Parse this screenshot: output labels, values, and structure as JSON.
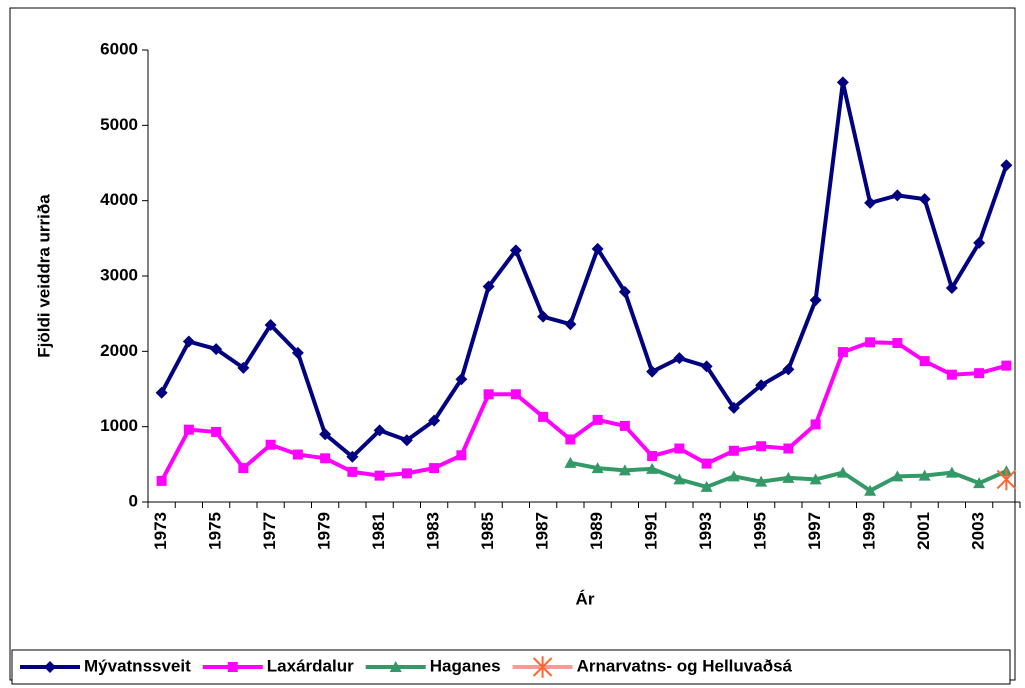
{
  "chart_data": {
    "type": "line",
    "x_label": "Ár",
    "y_label": "Fjöldi veiddra urriða",
    "categories": [
      "1973",
      null,
      "1975",
      null,
      "1977",
      null,
      "1979",
      null,
      "1981",
      null,
      "1983",
      null,
      "1985",
      null,
      "1987",
      null,
      "1989",
      null,
      "1991",
      null,
      "1993",
      null,
      "1995",
      null,
      "1997",
      null,
      "1999",
      null,
      "2001",
      null,
      "2003",
      null
    ],
    "series": [
      {
        "name": "Mývatnssveit",
        "color": "#000080",
        "marker": "diamond",
        "values": [
          1450,
          2130,
          2030,
          1780,
          2350,
          1980,
          900,
          600,
          950,
          820,
          1080,
          1630,
          2860,
          3340,
          2460,
          2360,
          3360,
          2790,
          1730,
          1910,
          1800,
          1250,
          1550,
          1760,
          2680,
          5570,
          3970,
          4070,
          4020,
          2840,
          3440,
          4470
        ]
      },
      {
        "name": "Laxárdalur",
        "color": "#ff00ff",
        "marker": "square",
        "values": [
          280,
          960,
          930,
          450,
          760,
          630,
          580,
          400,
          350,
          380,
          450,
          620,
          1430,
          1430,
          1130,
          830,
          1090,
          1010,
          610,
          710,
          510,
          680,
          740,
          710,
          1030,
          1990,
          2120,
          2110,
          1870,
          1690,
          1710,
          1810
        ]
      },
      {
        "name": "Haganes",
        "color": "#339966",
        "marker": "triangle",
        "values": [
          null,
          null,
          null,
          null,
          null,
          null,
          null,
          null,
          null,
          null,
          null,
          null,
          null,
          null,
          null,
          520,
          450,
          420,
          440,
          300,
          200,
          340,
          270,
          320,
          300,
          390,
          150,
          340,
          350,
          390,
          250,
          410
        ]
      },
      {
        "name": "Arnarvatns- og Helluvaðsá",
        "color": "#ff6633",
        "legend_line_color": "#ff9999",
        "marker": "asterisk",
        "values": [
          null,
          null,
          null,
          null,
          null,
          null,
          null,
          null,
          null,
          null,
          null,
          null,
          null,
          null,
          null,
          null,
          null,
          null,
          null,
          null,
          null,
          null,
          null,
          null,
          null,
          null,
          null,
          null,
          null,
          null,
          null,
          300
        ]
      }
    ],
    "ylim": [
      0,
      6000
    ],
    "yticks": [
      0,
      1000,
      2000,
      3000,
      4000,
      5000,
      6000
    ]
  }
}
